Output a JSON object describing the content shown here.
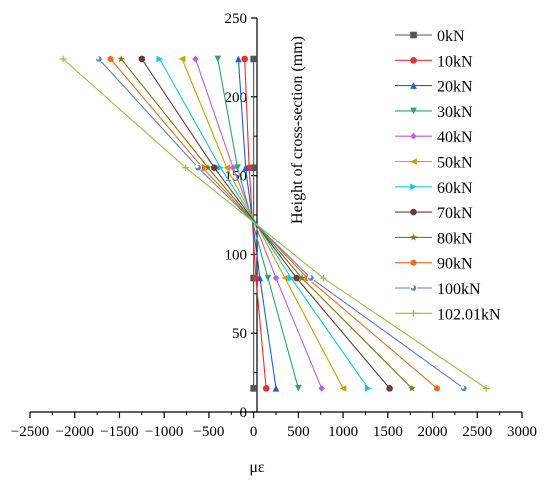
{
  "chart_data": {
    "type": "line",
    "xlabel": "με",
    "ylabel": "Height of cross-section (mm)",
    "xlim": [
      -2500,
      3000
    ],
    "ylim": [
      0,
      250
    ],
    "xticks": [
      -2500,
      -2000,
      -1500,
      -1000,
      -500,
      0,
      500,
      1000,
      1500,
      2000,
      2500,
      3000
    ],
    "yticks": [
      0,
      50,
      100,
      150,
      200,
      250
    ],
    "y": [
      15,
      85,
      155,
      224
    ],
    "legend_position": "right",
    "series": [
      {
        "name": "0kN",
        "color": "#555555",
        "marker": "square",
        "x": [
          0,
          0,
          0,
          0
        ]
      },
      {
        "name": "10kN",
        "color": "#e8312f",
        "marker": "circle",
        "x": [
          140,
          25,
          -50,
          -100
        ]
      },
      {
        "name": "20kN",
        "color": "#1f5fd6",
        "marker": "triangle-up",
        "x": [
          250,
          70,
          -90,
          -170
        ]
      },
      {
        "name": "30kN",
        "color": "#2ea36a",
        "marker": "triangle-down",
        "x": [
          500,
          160,
          -180,
          -400
        ]
      },
      {
        "name": "40kN",
        "color": "#b85ee8",
        "marker": "diamond",
        "x": [
          760,
          250,
          -230,
          -650
        ]
      },
      {
        "name": "50kN",
        "color": "#c9a100",
        "marker": "triangle-left",
        "x": [
          1000,
          350,
          -300,
          -800
        ]
      },
      {
        "name": "60kN",
        "color": "#14c8d8",
        "marker": "triangle-right",
        "x": [
          1280,
          420,
          -370,
          -1050
        ]
      },
      {
        "name": "70kN",
        "color": "#6e3a35",
        "marker": "circle",
        "x": [
          1520,
          480,
          -440,
          -1250
        ]
      },
      {
        "name": "80kN",
        "color": "#7a7a10",
        "marker": "star",
        "x": [
          1770,
          540,
          -510,
          -1480
        ]
      },
      {
        "name": "90kN",
        "color": "#f26b1d",
        "marker": "hexagon",
        "x": [
          2050,
          600,
          -570,
          -1600
        ]
      },
      {
        "name": "100kN",
        "color": "#5a7fc4",
        "marker": "circle-half",
        "x": [
          2350,
          640,
          -620,
          -1730
        ]
      },
      {
        "name": "102.01kN",
        "color": "#8cc63f",
        "marker": "plus",
        "x": [
          2600,
          780,
          -760,
          -2130
        ]
      }
    ]
  }
}
